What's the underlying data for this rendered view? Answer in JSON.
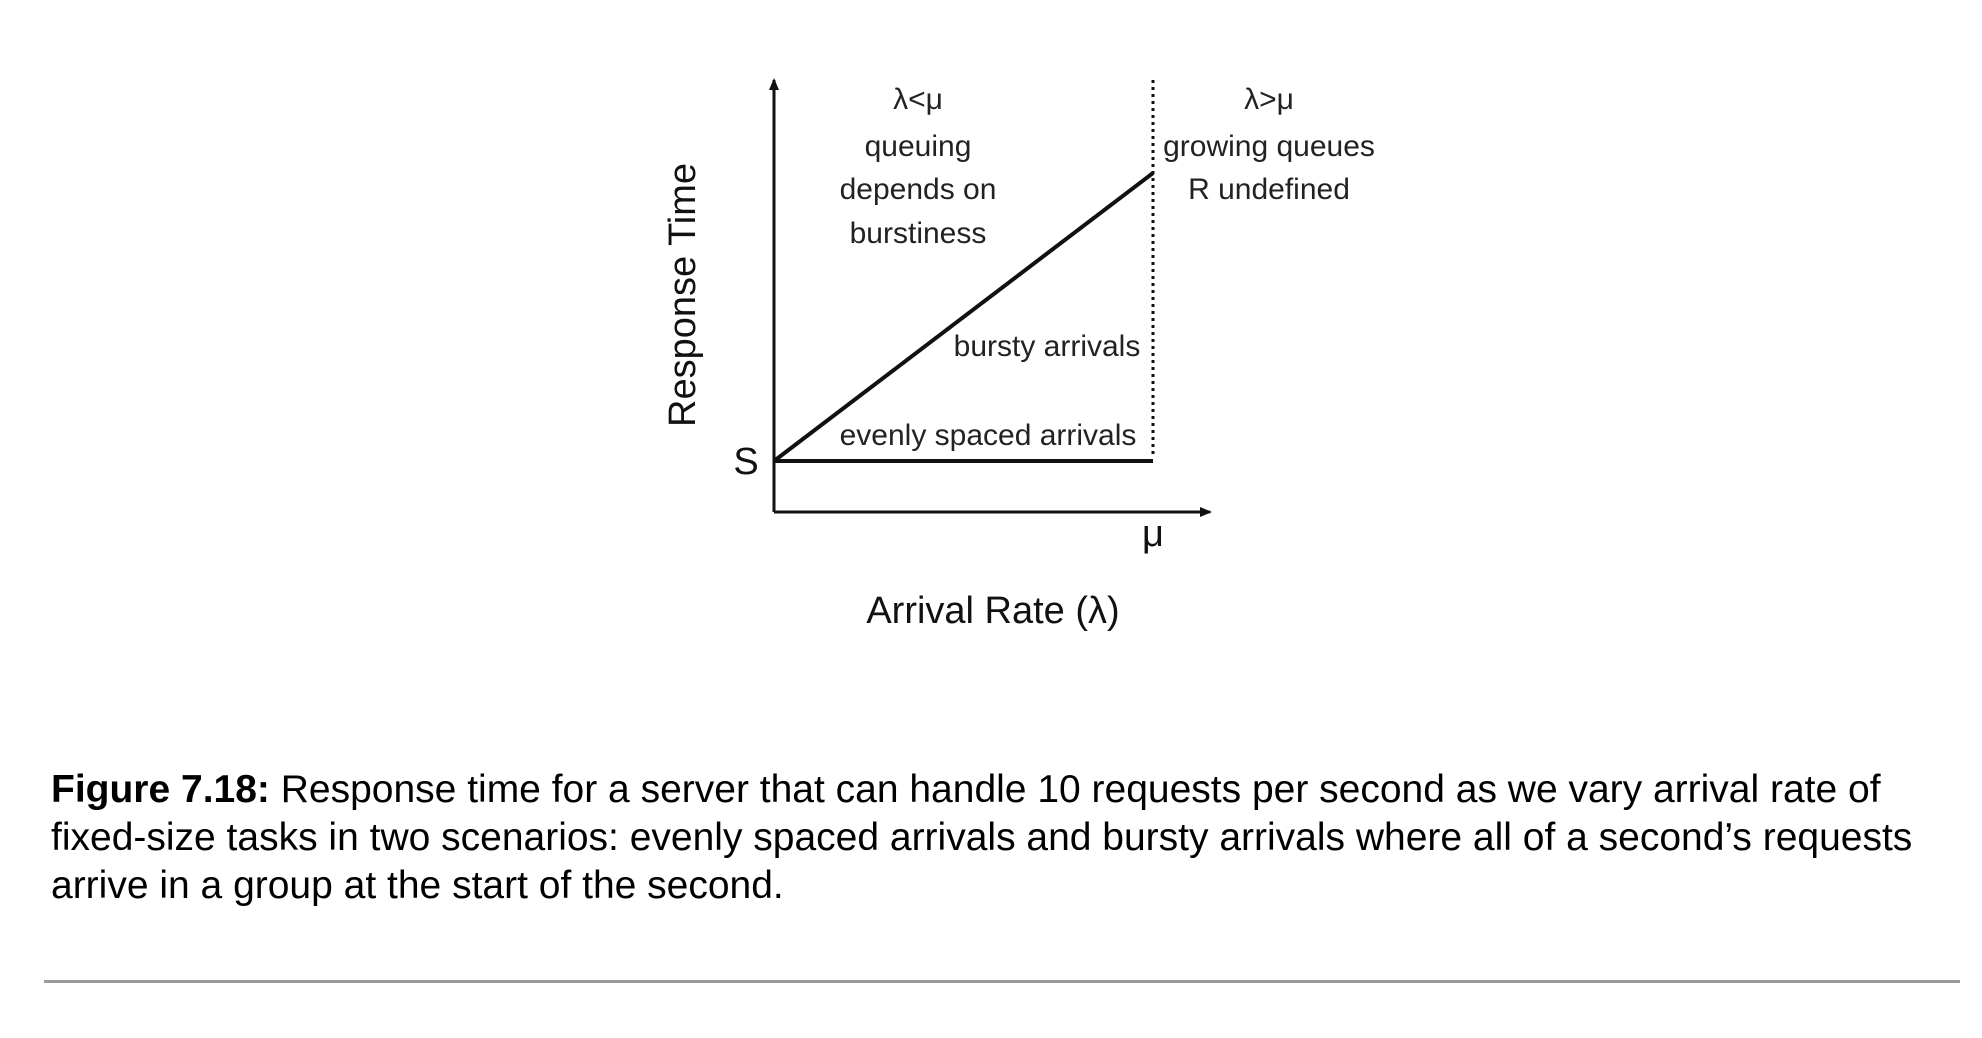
{
  "diagram": {
    "y_axis_label": "Response Time",
    "x_axis_label": "Arrival Rate (λ)",
    "s_label": "S",
    "mu_label": "μ",
    "left_region": [
      "λ<μ",
      "queuing",
      "depends on",
      "burstiness"
    ],
    "right_region": [
      "λ>μ",
      "growing queues",
      "R undefined"
    ],
    "bursty_label": "bursty arrivals",
    "even_label": "evenly spaced arrivals"
  },
  "caption": {
    "label": "Figure 7.18:",
    "text": " Response time for a server that can handle 10 requests per second as we vary arrival rate of fixed-size tasks in two scenarios: evenly spaced arrivals and bursty arrivals where all of a second’s requests arrive in a group at the start of the second."
  }
}
